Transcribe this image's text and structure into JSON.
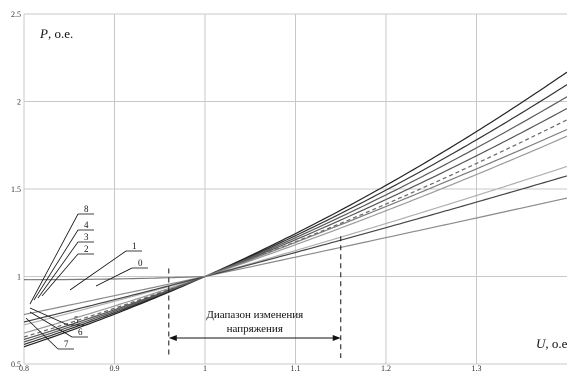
{
  "chart_data": {
    "type": "line",
    "xlim": [
      0.8,
      1.4
    ],
    "ylim": [
      0.5,
      2.5
    ],
    "x_ticks": [
      "0.8",
      "0.9",
      "1",
      "1.1",
      "1.2",
      "1.3"
    ],
    "y_ticks": [
      "0.5",
      "1",
      "1.5",
      "2",
      "2.5"
    ],
    "y_label_italic": "P",
    "y_label_rest": ", о.е.",
    "x_label_italic": "U",
    "x_label_rest": ", о.е.",
    "grid": true,
    "range_annotation": {
      "line1": "Диапазон изменения",
      "line2": "напряжения",
      "from": 0.96,
      "to": 1.15
    },
    "series": [
      {
        "name": "0",
        "exponent": 1.45,
        "color": "#b0b0b0",
        "dashed": false
      },
      {
        "name": "1",
        "exponent": 1.1,
        "color": "#8a8a8a",
        "dashed": false
      },
      {
        "name": "2",
        "exponent": 1.9,
        "color": "#666666",
        "dashed": true
      },
      {
        "name": "3",
        "exponent": 1.75,
        "color": "#9a9a9a",
        "dashed": false
      },
      {
        "name": "4",
        "exponent": 2.0,
        "color": "#555555",
        "dashed": false
      },
      {
        "name": "5",
        "exponent": 2.2,
        "color": "#333333",
        "dashed": false
      },
      {
        "name": "6",
        "exponent": 1.35,
        "color": "#444444",
        "dashed": false
      },
      {
        "name": "7",
        "exponent": 2.3,
        "color": "#222222",
        "dashed": false
      },
      {
        "name": "8",
        "exponent": 2.1,
        "color": "#5a5a5a",
        "dashed": false
      }
    ],
    "bowed_series": {
      "name": "0-upper",
      "y_at_08": 1.02,
      "color": "#7a7a7a"
    }
  }
}
